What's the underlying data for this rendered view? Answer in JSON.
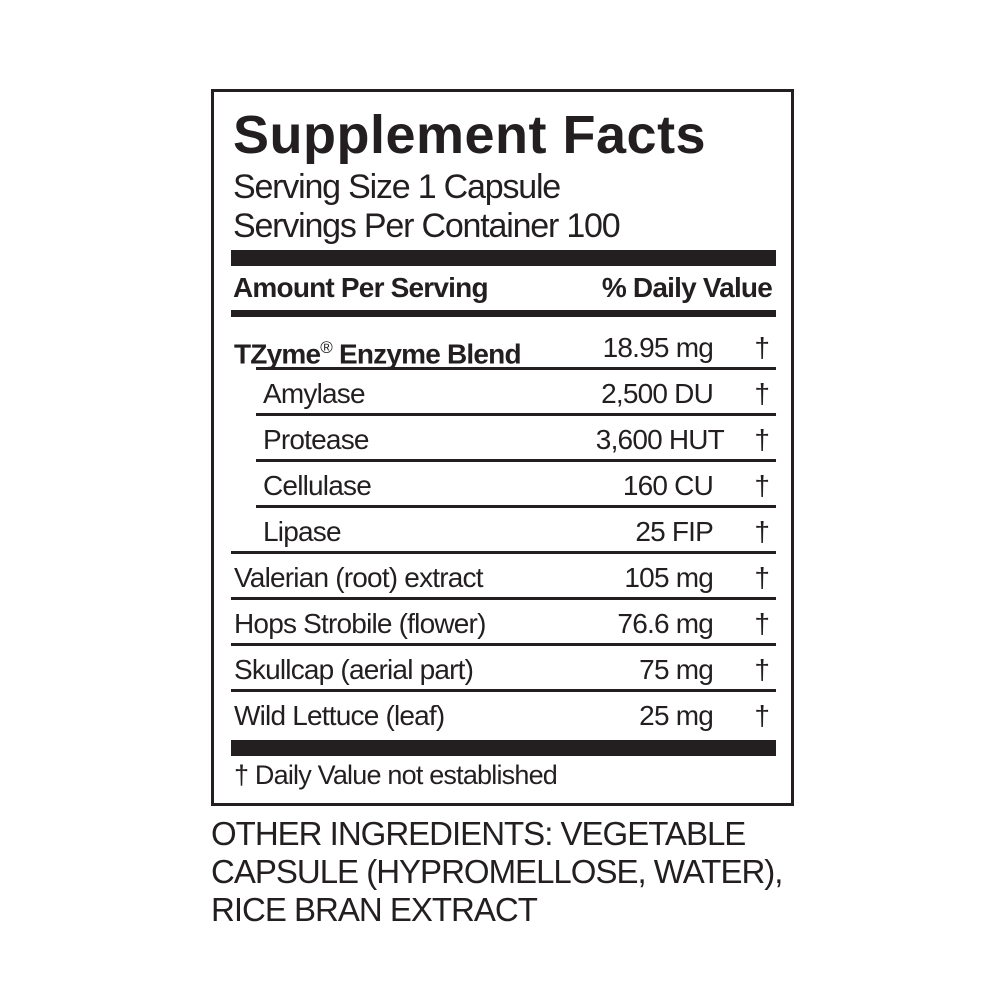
{
  "title": "Supplement Facts",
  "serving_size": "Serving Size 1 Capsule",
  "servings_per_container": "Servings Per Container 100",
  "header": {
    "amount": "Amount Per Serving",
    "daily_value": "% Daily Value"
  },
  "rows": [
    {
      "name": "TZyme",
      "reg": "®",
      "name_rest": " Enzyme Blend",
      "amount": "18.95 mg",
      "dv": "†"
    },
    {
      "name": "Amylase",
      "amount": "2,500 DU",
      "dv": "†"
    },
    {
      "name": "Protease",
      "amount": "3,600 HUT",
      "dv": "†"
    },
    {
      "name": "Cellulase",
      "amount": "160 CU",
      "dv": "†"
    },
    {
      "name": "Lipase",
      "amount": "25 FIP",
      "dv": "†"
    },
    {
      "name": "Valerian (root) extract",
      "amount": "105 mg",
      "dv": "†"
    },
    {
      "name": "Hops Strobile (flower)",
      "amount": "76.6 mg",
      "dv": "†"
    },
    {
      "name": "Skullcap (aerial part)",
      "amount": "75 mg",
      "dv": "†"
    },
    {
      "name": "Wild Lettuce (leaf)",
      "amount": "25 mg",
      "dv": "†"
    }
  ],
  "footnote": "† Daily Value not established",
  "other_ingredients": [
    "OTHER INGREDIENTS: VEGETABLE",
    "CAPSULE (HYPROMELLOSE, WATER),",
    "RICE BRAN EXTRACT"
  ]
}
